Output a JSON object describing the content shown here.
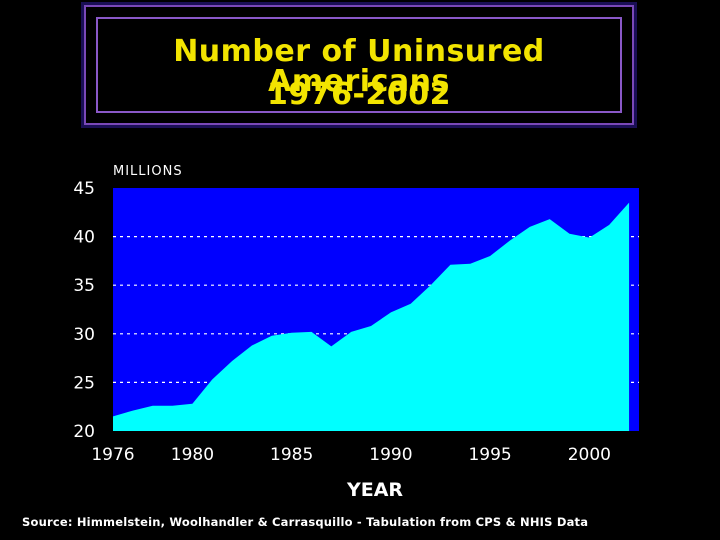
{
  "header": {
    "title_line1": "Number of Uninsured Americans",
    "title_line2": "1976-2002"
  },
  "chart_data": {
    "type": "area",
    "title": "Number of Uninsured Americans 1976-2002",
    "ylabel": "MILLIONS",
    "xlabel": "YEAR",
    "ylim": [
      20,
      45
    ],
    "xlim": [
      1976,
      2002.5
    ],
    "yticks": [
      "20",
      "25",
      "30",
      "35",
      "40",
      "45"
    ],
    "xticks": [
      "1976",
      "1980",
      "1985",
      "1990",
      "1995",
      "2000"
    ],
    "grid": "dotted horizontal",
    "colors": {
      "plot_background": "#0000ff",
      "area_fill": "#00ffff",
      "gridline": "#ffffff"
    },
    "x": [
      1976,
      1977,
      1978,
      1979,
      1980,
      1981,
      1982,
      1983,
      1984,
      1985,
      1986,
      1987,
      1988,
      1989,
      1990,
      1991,
      1992,
      1993,
      1994,
      1995,
      1996,
      1997,
      1998,
      1999,
      2000,
      2001,
      2002
    ],
    "values": [
      21.5,
      22.1,
      22.6,
      22.6,
      22.8,
      25.3,
      27.2,
      28.8,
      29.8,
      30.1,
      30.2,
      28.7,
      30.2,
      30.8,
      32.2,
      33.1,
      35.0,
      37.1,
      37.2,
      38.0,
      39.6,
      41.0,
      41.8,
      40.3,
      39.9,
      41.2,
      43.5
    ]
  },
  "source": "Source: Himmelstein, Woolhandler & Carrasquillo - Tabulation from CPS & NHIS Data"
}
